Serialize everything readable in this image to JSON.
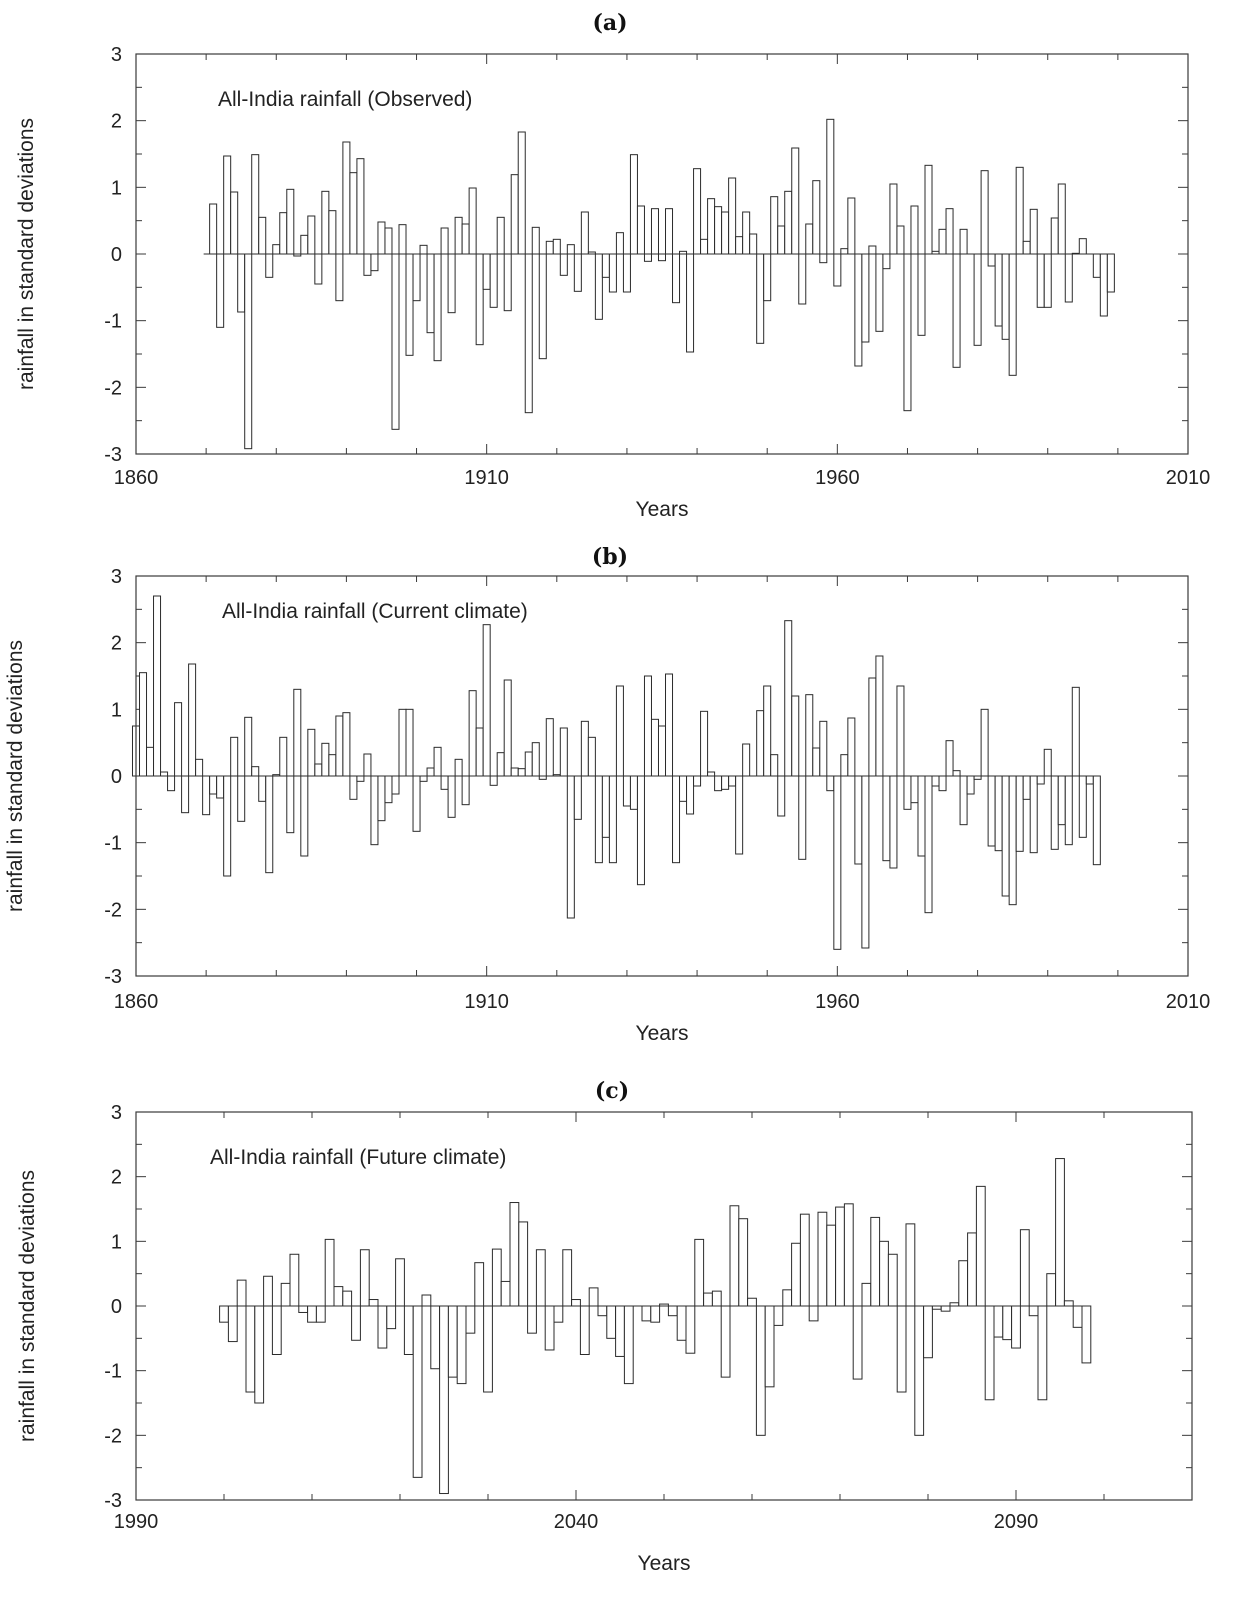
{
  "chart_data": [
    {
      "type": "bar",
      "panel_label": "(a)",
      "title": "All-India rainfall (Observed)",
      "xlabel": "Years",
      "ylabel": "rainfall in standard deviations",
      "xlim": [
        1860,
        2010
      ],
      "ylim": [
        -3,
        3
      ],
      "xticks": [
        1860,
        1910,
        1960,
        2010
      ],
      "yticks": [
        -3,
        -2,
        -1,
        0,
        1,
        2,
        3
      ],
      "x_start": 1871,
      "values": [
        0.75,
        -1.1,
        1.47,
        0.93,
        -0.87,
        -2.92,
        1.49,
        0.55,
        -0.35,
        0.14,
        0.62,
        0.97,
        -0.03,
        0.28,
        0.57,
        -0.45,
        0.94,
        0.65,
        -0.7,
        1.68,
        1.22,
        1.43,
        -0.32,
        -0.25,
        0.48,
        0.39,
        -2.63,
        0.44,
        -1.52,
        -0.7,
        0.13,
        -1.18,
        -1.6,
        0.39,
        -0.88,
        0.55,
        0.45,
        0.99,
        -1.36,
        -0.53,
        -0.8,
        0.55,
        -0.85,
        1.19,
        1.83,
        -2.38,
        0.4,
        -1.57,
        0.19,
        0.22,
        -0.32,
        0.14,
        -0.56,
        0.63,
        0.03,
        -0.98,
        -0.35,
        -0.57,
        0.32,
        -0.57,
        1.49,
        0.72,
        -0.11,
        0.68,
        -0.1,
        0.68,
        -0.73,
        0.04,
        -1.47,
        1.28,
        0.22,
        0.83,
        0.71,
        0.63,
        1.14,
        0.26,
        0.63,
        0.3,
        -1.34,
        -0.7,
        0.86,
        0.42,
        0.94,
        1.59,
        -0.75,
        0.45,
        1.1,
        -0.13,
        2.02,
        -0.48,
        0.08,
        0.84,
        -1.68,
        -1.32,
        0.12,
        -1.16,
        -0.22,
        1.05,
        0.42,
        -2.35,
        0.72,
        -1.22,
        1.33,
        0.04,
        0.37,
        0.68,
        -1.7,
        0.37,
        0.0,
        -1.37,
        1.25,
        -0.18,
        -1.08,
        -1.28,
        -1.82,
        1.3,
        0.19,
        0.67,
        -0.8,
        -0.8,
        0.54,
        1.05,
        -0.72,
        0.01,
        0.23,
        0.0,
        -0.35,
        -0.93,
        -0.57
      ]
    },
    {
      "type": "bar",
      "panel_label": "(b)",
      "title": "All-India rainfall (Current climate)",
      "xlabel": "Years",
      "ylabel": "rainfall in standard deviations",
      "xlim": [
        1860,
        2010
      ],
      "ylim": [
        -3,
        3
      ],
      "xticks": [
        1860,
        1910,
        1960,
        2010
      ],
      "yticks": [
        -3,
        -2,
        -1,
        0,
        1,
        2,
        3
      ],
      "x_start": 1860,
      "values": [
        0.75,
        1.55,
        0.43,
        2.7,
        0.06,
        -0.22,
        1.1,
        -0.55,
        1.68,
        0.25,
        -0.58,
        -0.27,
        -0.33,
        -1.5,
        0.58,
        -0.68,
        0.88,
        0.14,
        -0.38,
        -1.45,
        0.02,
        0.58,
        -0.85,
        1.3,
        -1.2,
        0.7,
        0.18,
        0.49,
        0.32,
        0.9,
        0.95,
        -0.35,
        -0.08,
        0.33,
        -1.03,
        -0.67,
        -0.4,
        -0.27,
        1.0,
        1.0,
        -0.83,
        -0.08,
        0.12,
        0.43,
        -0.2,
        -0.62,
        0.25,
        -0.43,
        1.28,
        0.72,
        2.27,
        -0.14,
        0.35,
        1.44,
        0.12,
        0.11,
        0.36,
        0.5,
        -0.05,
        0.86,
        0.02,
        0.72,
        -2.13,
        -0.65,
        0.82,
        0.58,
        -1.3,
        -0.92,
        -1.3,
        1.35,
        -0.45,
        -0.5,
        -1.63,
        1.5,
        0.85,
        0.75,
        1.53,
        -1.3,
        -0.38,
        -0.57,
        -0.15,
        0.97,
        0.06,
        -0.22,
        -0.2,
        -0.15,
        -1.17,
        0.48,
        0.0,
        0.98,
        1.35,
        0.32,
        -0.6,
        2.33,
        1.2,
        -1.25,
        1.22,
        0.42,
        0.82,
        -0.22,
        -2.6,
        0.32,
        0.87,
        -1.32,
        -2.58,
        1.47,
        1.8,
        -1.27,
        -1.38,
        1.35,
        -0.5,
        -0.4,
        -1.2,
        -2.05,
        -0.15,
        -0.22,
        0.53,
        0.08,
        -0.73,
        -0.27,
        -0.05,
        1.0,
        -1.05,
        -1.12,
        -1.8,
        -1.93,
        -1.13,
        -0.35,
        -1.15,
        -0.12,
        0.4,
        -1.1,
        -0.73,
        -1.03,
        1.33,
        -0.92,
        -0.12,
        -1.33
      ]
    },
    {
      "type": "bar",
      "panel_label": "(c)",
      "title": "All-India rainfall (Future climate)",
      "xlabel": "Years",
      "ylabel": "rainfall in standard deviations",
      "xlim": [
        1990,
        2110
      ],
      "ylim": [
        -3,
        3
      ],
      "xticks": [
        1990,
        2040,
        2090
      ],
      "yticks": [
        -3,
        -2,
        -1,
        0,
        1,
        2,
        3
      ],
      "x_start": 2000,
      "values": [
        -0.25,
        -0.55,
        0.4,
        -1.33,
        -1.5,
        0.46,
        -0.75,
        0.35,
        0.8,
        -0.1,
        -0.25,
        -0.25,
        1.03,
        0.3,
        0.23,
        -0.53,
        0.87,
        0.1,
        -0.65,
        -0.35,
        0.73,
        -0.75,
        -2.65,
        0.17,
        -0.97,
        -2.9,
        -1.1,
        -1.2,
        -0.42,
        0.67,
        -1.33,
        0.88,
        0.38,
        1.6,
        1.3,
        -0.42,
        0.87,
        -0.68,
        -0.25,
        0.87,
        0.1,
        -0.75,
        0.28,
        -0.15,
        -0.5,
        -0.78,
        -1.2,
        0.0,
        -0.23,
        -0.25,
        0.03,
        -0.15,
        -0.53,
        -0.73,
        1.03,
        0.2,
        0.23,
        -1.1,
        1.55,
        1.35,
        0.12,
        -2.0,
        -1.25,
        -0.3,
        0.25,
        0.97,
        1.42,
        -0.23,
        1.45,
        1.25,
        1.53,
        1.58,
        -1.13,
        0.35,
        1.37,
        1.0,
        0.8,
        -1.33,
        1.27,
        -2.0,
        -0.8,
        -0.05,
        -0.08,
        0.05,
        0.7,
        1.13,
        1.85,
        -1.45,
        -0.48,
        -0.52,
        -0.65,
        1.18,
        -0.15,
        -1.45,
        0.5,
        2.28,
        0.08,
        -0.33,
        -0.88
      ]
    }
  ]
}
